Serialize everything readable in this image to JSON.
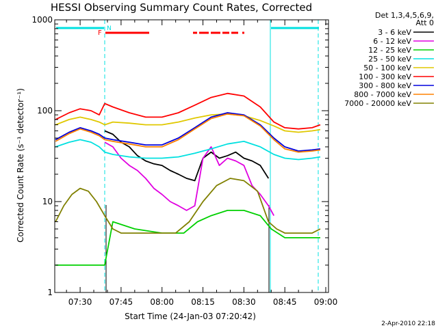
{
  "chart_data": {
    "type": "line",
    "title": "HESSI Observing Summary Count Rates, Corrected",
    "xlabel": "Start Time (24-Jan-03 07:20:42)",
    "ylabel": "Corrected Count Rate (s⁻¹ detector⁻¹)",
    "yscale": "log",
    "ylim": [
      1,
      1000
    ],
    "xlim": [
      "07:20:42",
      "09:01:00"
    ],
    "x_ticks": [
      "07:30",
      "07:45",
      "08:00",
      "08:15",
      "08:30",
      "08:45",
      "09:00"
    ],
    "y_ticks": [
      "1",
      "10",
      "100",
      "1000"
    ],
    "legend_header": [
      "Det 1,3,4,5,6,9,",
      "Att 0"
    ],
    "legend_position": "right",
    "timestamp": "2-Apr-2010 22:18",
    "flag_labels": {
      "F": "F",
      "N": "N"
    },
    "bar_colors": {
      "night": "#00e0e0",
      "flare": "#ff0000"
    },
    "series": [
      {
        "name": "3 - 6 keV",
        "color": "#000000",
        "x": [
          "07:39",
          "07:42",
          "07:45",
          "07:48",
          "07:51",
          "07:54",
          "07:57",
          "08:00",
          "08:03",
          "08:06",
          "08:09",
          "08:12",
          "08:15",
          "08:18",
          "08:21",
          "08:24",
          "08:27",
          "08:30",
          "08:33",
          "08:36",
          "08:39"
        ],
        "y": [
          60,
          55,
          45,
          40,
          32,
          28,
          26,
          25,
          22,
          20,
          18,
          17,
          30,
          35,
          30,
          32,
          35,
          30,
          28,
          25,
          18
        ]
      },
      {
        "name": "6 - 12 keV",
        "color": "#e000e0",
        "x": [
          "07:39",
          "07:42",
          "07:45",
          "07:48",
          "07:51",
          "07:54",
          "07:57",
          "08:00",
          "08:03",
          "08:06",
          "08:09",
          "08:12",
          "08:15",
          "08:18",
          "08:21",
          "08:24",
          "08:27",
          "08:30",
          "08:33",
          "08:36",
          "08:39",
          "08:41"
        ],
        "y": [
          45,
          40,
          30,
          25,
          22,
          18,
          14,
          12,
          10,
          9,
          8,
          9,
          30,
          40,
          25,
          30,
          28,
          25,
          15,
          12,
          9,
          7
        ]
      },
      {
        "name": "12 - 25 keV",
        "color": "#00d000",
        "x": [
          "07:21",
          "07:28",
          "07:35",
          "07:39",
          "07:42",
          "07:50",
          "08:00",
          "08:08",
          "08:13",
          "08:18",
          "08:24",
          "08:30",
          "08:36",
          "08:40",
          "08:45",
          "08:50",
          "08:55",
          "08:58"
        ],
        "y": [
          2,
          2,
          2,
          2,
          6,
          5,
          4.5,
          4.5,
          6,
          7,
          8,
          8,
          7,
          5,
          4,
          4,
          4,
          4
        ]
      },
      {
        "name": "25 - 50 keV",
        "color": "#00e0e0",
        "x": [
          "07:21",
          "07:26",
          "07:30",
          "07:34",
          "07:37",
          "07:39",
          "07:42",
          "07:48",
          "07:54",
          "08:00",
          "08:06",
          "08:12",
          "08:18",
          "08:24",
          "08:30",
          "08:36",
          "08:41",
          "08:45",
          "08:50",
          "08:55",
          "08:58"
        ],
        "y": [
          40,
          45,
          48,
          45,
          40,
          35,
          33,
          31,
          30,
          30,
          31,
          34,
          38,
          43,
          46,
          40,
          33,
          30,
          29,
          30,
          31
        ]
      },
      {
        "name": "50 - 100 keV",
        "color": "#e0c800",
        "x": [
          "07:21",
          "07:26",
          "07:30",
          "07:34",
          "07:37",
          "07:39",
          "07:42",
          "07:48",
          "07:54",
          "08:00",
          "08:06",
          "08:12",
          "08:18",
          "08:24",
          "08:30",
          "08:36",
          "08:41",
          "08:45",
          "08:50",
          "08:55",
          "08:58"
        ],
        "y": [
          70,
          80,
          85,
          80,
          75,
          70,
          75,
          73,
          70,
          70,
          75,
          83,
          90,
          92,
          88,
          78,
          68,
          60,
          58,
          60,
          62
        ]
      },
      {
        "name": "100 - 300 keV",
        "color": "#ff0000",
        "x": [
          "07:21",
          "07:26",
          "07:30",
          "07:34",
          "07:37",
          "07:39",
          "07:42",
          "07:48",
          "07:54",
          "08:00",
          "08:06",
          "08:12",
          "08:18",
          "08:24",
          "08:30",
          "08:36",
          "08:41",
          "08:45",
          "08:50",
          "08:55",
          "08:58"
        ],
        "y": [
          80,
          95,
          105,
          100,
          90,
          120,
          110,
          95,
          85,
          85,
          95,
          115,
          140,
          155,
          145,
          110,
          75,
          65,
          63,
          65,
          70
        ]
      },
      {
        "name": "300 - 800 keV",
        "color": "#0000dd",
        "x": [
          "07:21",
          "07:26",
          "07:30",
          "07:34",
          "07:37",
          "07:39",
          "07:42",
          "07:48",
          "07:54",
          "08:00",
          "08:06",
          "08:12",
          "08:18",
          "08:24",
          "08:30",
          "08:36",
          "08:41",
          "08:45",
          "08:50",
          "08:55",
          "08:58"
        ],
        "y": [
          48,
          58,
          65,
          60,
          55,
          50,
          48,
          45,
          42,
          42,
          50,
          65,
          85,
          95,
          90,
          70,
          50,
          40,
          36,
          37,
          38
        ]
      },
      {
        "name": "800 - 7000 keV",
        "color": "#ff8000",
        "x": [
          "07:21",
          "07:26",
          "07:30",
          "07:34",
          "07:37",
          "07:39",
          "07:42",
          "07:48",
          "07:54",
          "08:00",
          "08:06",
          "08:12",
          "08:18",
          "08:24",
          "08:30",
          "08:36",
          "08:41",
          "08:45",
          "08:50",
          "08:55",
          "08:58"
        ],
        "y": [
          46,
          56,
          63,
          58,
          53,
          48,
          46,
          43,
          40,
          40,
          48,
          63,
          82,
          92,
          88,
          68,
          48,
          38,
          35,
          36,
          37
        ]
      },
      {
        "name": "7000 - 20000 keV",
        "color": "#808000",
        "x": [
          "07:21",
          "07:24",
          "07:27",
          "07:30",
          "07:33",
          "07:36",
          "07:39",
          "07:42",
          "07:45",
          "07:50",
          "07:55",
          "08:00",
          "08:05",
          "08:10",
          "08:15",
          "08:20",
          "08:25",
          "08:30",
          "08:35",
          "08:39",
          "08:42",
          "08:45",
          "08:50",
          "08:55",
          "08:58"
        ],
        "y": [
          6,
          9,
          12,
          14,
          13,
          10,
          7,
          5,
          4.5,
          4.5,
          4.5,
          4.5,
          4.5,
          6,
          10,
          15,
          18,
          17,
          13,
          6,
          5,
          4.5,
          4.5,
          4.5,
          5
        ]
      }
    ]
  }
}
